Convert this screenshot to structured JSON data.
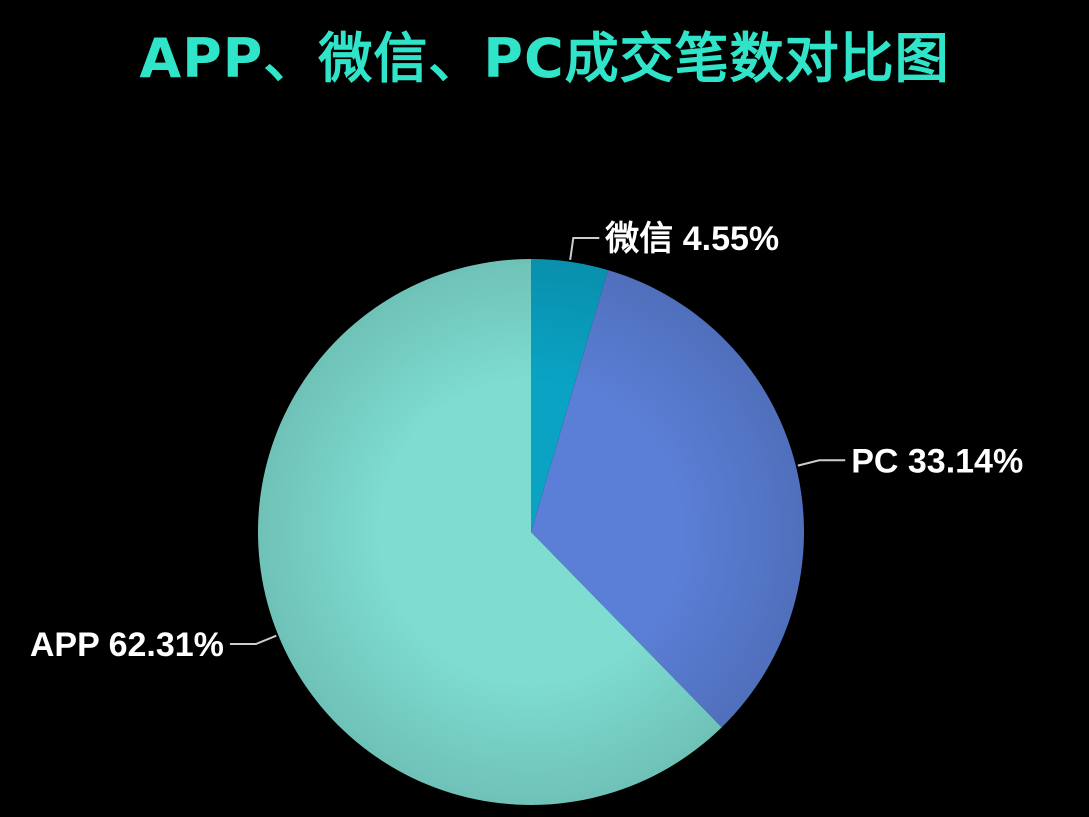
{
  "chart_data": {
    "type": "pie",
    "title": "APP、微信、PC成交笔数对比图",
    "slices": [
      {
        "name": "微信",
        "percent": 4.55,
        "label": "4.55%",
        "color": "#0aa3c4"
      },
      {
        "name": "PC",
        "percent": 33.14,
        "label": "33.14%",
        "color": "#5b7fd6"
      },
      {
        "name": "APP",
        "percent": 62.31,
        "label": "62.31%",
        "color": "#7edcd0"
      }
    ],
    "start_angle": "12 o'clock",
    "direction": "clockwise",
    "background": "#000000",
    "title_color": "#2fe4c9",
    "label_color": "#ffffff",
    "leader_color": "#cccccc"
  }
}
